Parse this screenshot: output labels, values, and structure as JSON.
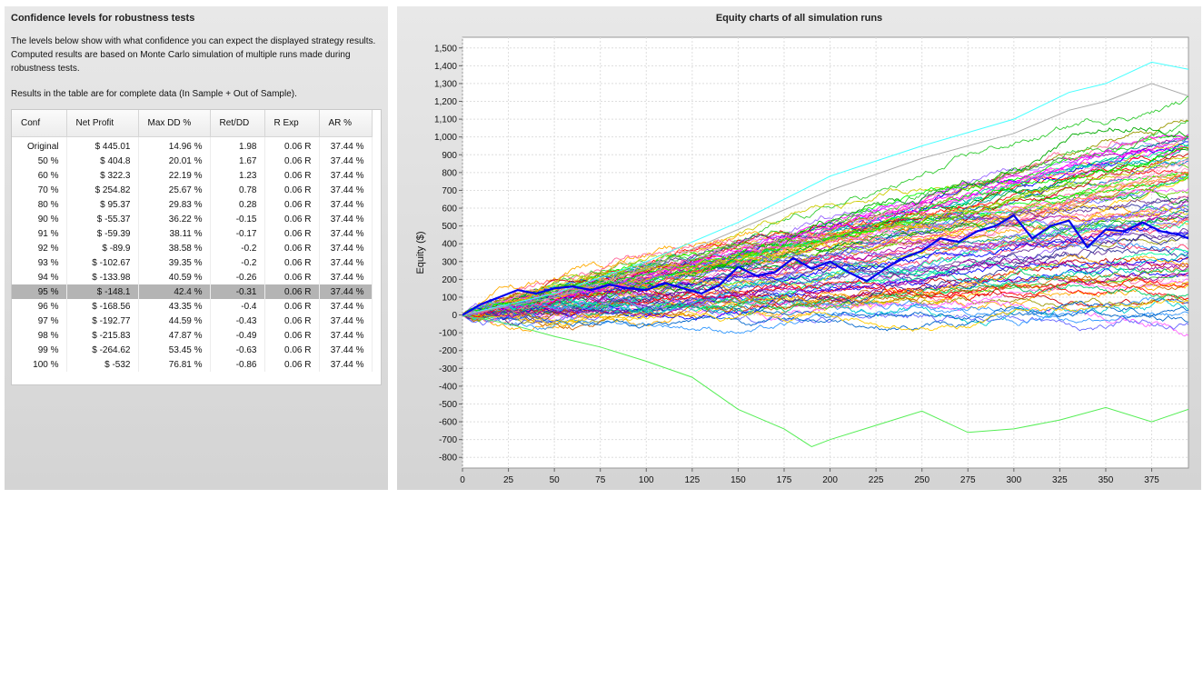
{
  "left_panel": {
    "title": "Confidence levels for robustness tests",
    "description": "The levels below show with what confidence you can expect the displayed strategy results. Computed results are based on Monte Carlo simulation of multiple runs made during robustness tests.",
    "note": "Results in the table are for complete data (In Sample + Out of Sample).",
    "table": {
      "columns": [
        "Conf",
        "Net Profit",
        "Max DD %",
        "Ret/DD",
        "R Exp",
        "AR %"
      ],
      "selected_row": 10,
      "rows": [
        [
          "Original",
          "$ 445.01",
          "14.96 %",
          "1.98",
          "0.06 R",
          "37.44 %"
        ],
        [
          "50 %",
          "$ 404.8",
          "20.01 %",
          "1.67",
          "0.06 R",
          "37.44 %"
        ],
        [
          "60 %",
          "$ 322.3",
          "22.19 %",
          "1.23",
          "0.06 R",
          "37.44 %"
        ],
        [
          "70 %",
          "$ 254.82",
          "25.67 %",
          "0.78",
          "0.06 R",
          "37.44 %"
        ],
        [
          "80 %",
          "$ 95.37",
          "29.83 %",
          "0.28",
          "0.06 R",
          "37.44 %"
        ],
        [
          "90 %",
          "$ -55.37",
          "36.22 %",
          "-0.15",
          "0.06 R",
          "37.44 %"
        ],
        [
          "91 %",
          "$ -59.39",
          "38.11 %",
          "-0.17",
          "0.06 R",
          "37.44 %"
        ],
        [
          "92 %",
          "$ -89.9",
          "38.58 %",
          "-0.2",
          "0.06 R",
          "37.44 %"
        ],
        [
          "93 %",
          "$ -102.67",
          "39.35 %",
          "-0.2",
          "0.06 R",
          "37.44 %"
        ],
        [
          "94 %",
          "$ -133.98",
          "40.59 %",
          "-0.26",
          "0.06 R",
          "37.44 %"
        ],
        [
          "95 %",
          "$ -148.1",
          "42.4 %",
          "-0.31",
          "0.06 R",
          "37.44 %"
        ],
        [
          "96 %",
          "$ -168.56",
          "43.35 %",
          "-0.4",
          "0.06 R",
          "37.44 %"
        ],
        [
          "97 %",
          "$ -192.77",
          "44.59 %",
          "-0.43",
          "0.06 R",
          "37.44 %"
        ],
        [
          "98 %",
          "$ -215.83",
          "47.87 %",
          "-0.49",
          "0.06 R",
          "37.44 %"
        ],
        [
          "99 %",
          "$ -264.62",
          "53.45 %",
          "-0.63",
          "0.06 R",
          "37.44 %"
        ],
        [
          "100 %",
          "$ -532",
          "76.81 %",
          "-0.86",
          "0.06 R",
          "37.44 %"
        ]
      ]
    }
  },
  "right_panel": {
    "title": "Equity charts of all simulation runs"
  },
  "chart_data": {
    "type": "line",
    "title": "Equity charts of all simulation runs",
    "xlabel": "",
    "ylabel": "Equity ($)",
    "xlim": [
      0,
      395
    ],
    "ylim": [
      -860,
      1560
    ],
    "x_ticks": [
      0,
      25,
      50,
      75,
      100,
      125,
      150,
      175,
      200,
      225,
      250,
      275,
      300,
      325,
      350,
      375
    ],
    "y_ticks": [
      -800,
      -700,
      -600,
      -500,
      -400,
      -300,
      -200,
      -100,
      0,
      100,
      200,
      300,
      400,
      500,
      600,
      700,
      800,
      900,
      1000,
      1100,
      1200,
      1300,
      1400,
      1500
    ],
    "grid": true,
    "run_count": 100,
    "highlighted_series": {
      "color": "#0000ee",
      "x": [
        0,
        10,
        20,
        30,
        40,
        50,
        60,
        70,
        80,
        90,
        100,
        110,
        120,
        130,
        140,
        150,
        160,
        170,
        180,
        190,
        200,
        210,
        220,
        230,
        240,
        250,
        260,
        270,
        280,
        290,
        300,
        310,
        320,
        330,
        340,
        350,
        360,
        370,
        380,
        390,
        395
      ],
      "values": [
        0,
        60,
        100,
        140,
        120,
        150,
        160,
        140,
        170,
        150,
        140,
        180,
        150,
        120,
        170,
        270,
        220,
        240,
        320,
        260,
        300,
        240,
        190,
        260,
        320,
        360,
        430,
        410,
        470,
        500,
        560,
        430,
        500,
        530,
        380,
        480,
        470,
        520,
        470,
        450,
        430
      ]
    },
    "outlier_series": [
      {
        "color": "#55ee55",
        "description_visible": false,
        "x": [
          0,
          25,
          50,
          75,
          100,
          125,
          150,
          175,
          190,
          200,
          225,
          250,
          275,
          300,
          325,
          350,
          375,
          395
        ],
        "values": [
          0,
          -50,
          -120,
          -180,
          -260,
          -350,
          -530,
          -640,
          -740,
          -700,
          -620,
          -540,
          -660,
          -640,
          -590,
          -520,
          -600,
          -530
        ]
      },
      {
        "color": "#44ffff",
        "x": [
          0,
          50,
          100,
          150,
          200,
          250,
          300,
          330,
          350,
          375,
          395
        ],
        "values": [
          0,
          120,
          300,
          520,
          780,
          950,
          1100,
          1250,
          1300,
          1420,
          1380
        ]
      },
      {
        "color": "#aaaaaa",
        "x": [
          0,
          50,
          100,
          150,
          200,
          250,
          300,
          330,
          350,
          375,
          395
        ],
        "values": [
          0,
          100,
          260,
          480,
          700,
          880,
          1020,
          1150,
          1200,
          1300,
          1230
        ]
      }
    ]
  }
}
